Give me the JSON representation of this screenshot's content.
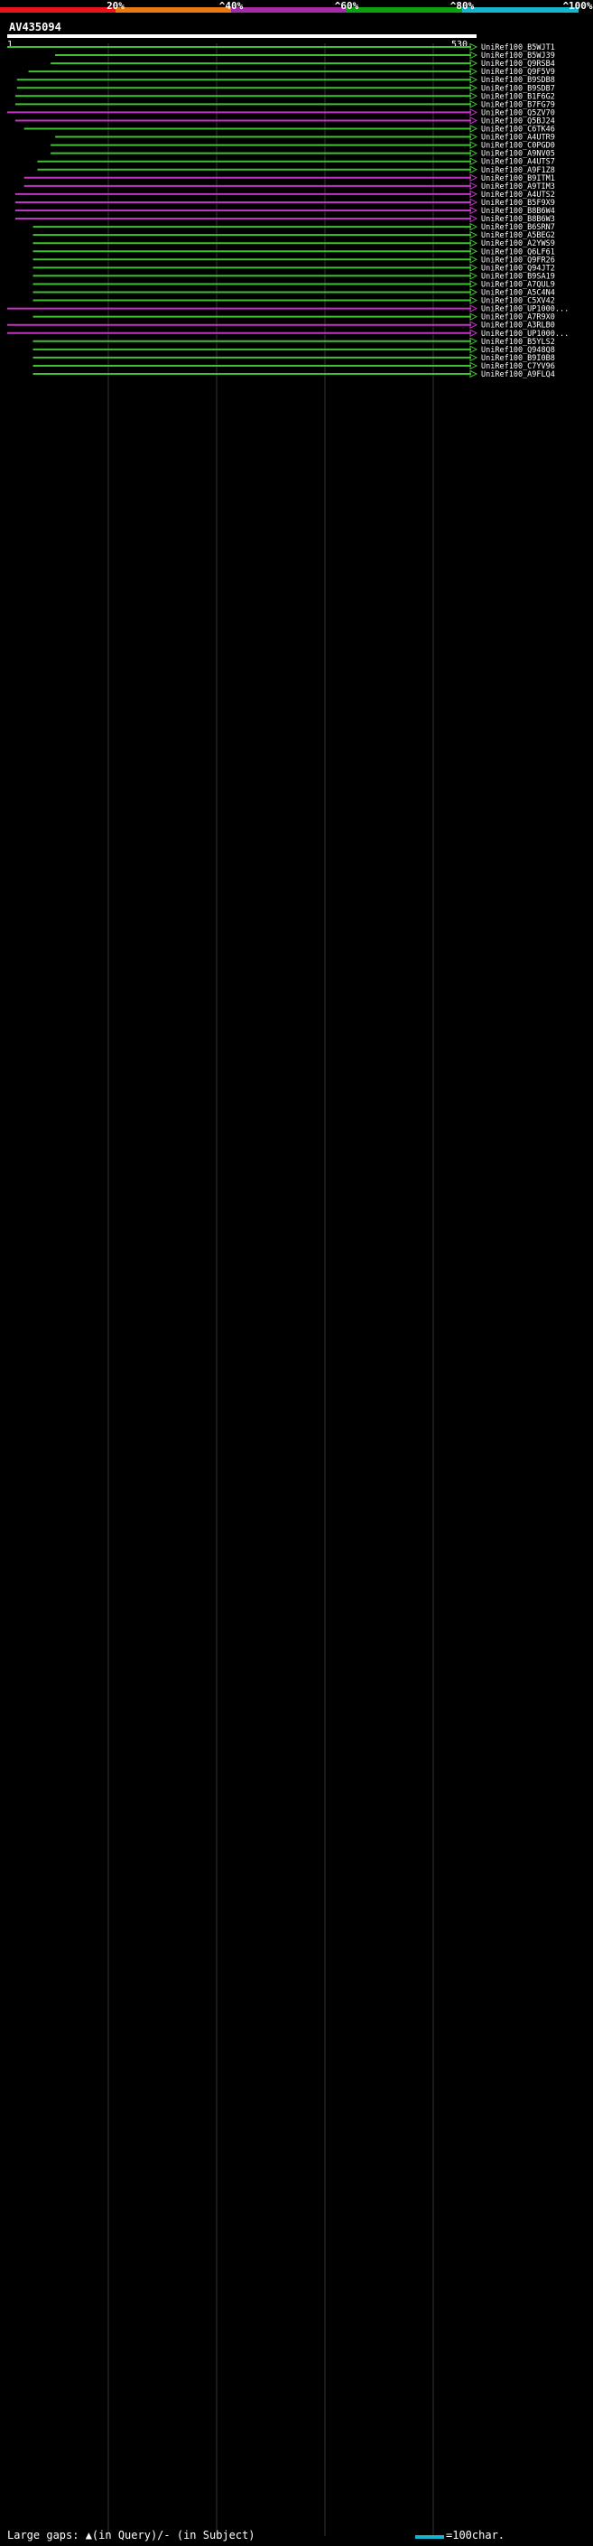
{
  "header": {
    "legend_ticks": [
      "20%",
      "^40%",
      "^60%",
      "^80%",
      "^100%"
    ],
    "legend_colors": [
      "#e8131b",
      "#e87a10",
      "#a52aa5",
      "#0da00f",
      "#16b5ce"
    ],
    "query_id": "AV435094",
    "scale_start": "1",
    "scale_end": "530"
  },
  "footer": {
    "left_text": "Large gaps: ▲(in Query)/- (in Subject)",
    "right_text": "=100char.",
    "scale_color": "#16b5ce"
  },
  "colors": {
    "green": "#3fc22f",
    "magenta": "#c234c4",
    "query_bar": "#ffffff",
    "grid": "#343434"
  },
  "chart_data": {
    "type": "bar",
    "description_scale": "horizontal alignment bars positioned by query coordinates 1..530",
    "x_range": [
      1,
      530
    ],
    "hits": [
      {
        "id": "UniRef100_B5WJT1",
        "start": 1,
        "end": 530,
        "color": "green"
      },
      {
        "id": "UniRef100_B5WJ39",
        "start": 55,
        "end": 530,
        "color": "green"
      },
      {
        "id": "UniRef100_Q9RSB4",
        "start": 50,
        "end": 530,
        "color": "green"
      },
      {
        "id": "UniRef100_Q9F5V9",
        "start": 25,
        "end": 530,
        "color": "green"
      },
      {
        "id": "UniRef100_B9SDB8",
        "start": 12,
        "end": 530,
        "color": "green"
      },
      {
        "id": "UniRef100_B9SDB7",
        "start": 12,
        "end": 530,
        "color": "green"
      },
      {
        "id": "UniRef100_B1F6G2",
        "start": 10,
        "end": 530,
        "color": "green"
      },
      {
        "id": "UniRef100_B7FG79",
        "start": 10,
        "end": 530,
        "color": "green"
      },
      {
        "id": "UniRef100_Q5ZV70",
        "start": 1,
        "end": 530,
        "color": "magenta"
      },
      {
        "id": "UniRef100_Q5BJ24",
        "start": 10,
        "end": 530,
        "color": "magenta"
      },
      {
        "id": "UniRef100_C6TK46",
        "start": 20,
        "end": 530,
        "color": "green"
      },
      {
        "id": "UniRef100_A4UTR9",
        "start": 55,
        "end": 530,
        "color": "green"
      },
      {
        "id": "UniRef100_C0PGD0",
        "start": 50,
        "end": 530,
        "color": "green"
      },
      {
        "id": "UniRef100_A9NV05",
        "start": 50,
        "end": 530,
        "color": "green"
      },
      {
        "id": "UniRef100_A4UTS7",
        "start": 35,
        "end": 530,
        "color": "green"
      },
      {
        "id": "UniRef100_A9F1Z8",
        "start": 35,
        "end": 530,
        "color": "green"
      },
      {
        "id": "UniRef100_B9ITM1",
        "start": 20,
        "end": 530,
        "color": "magenta"
      },
      {
        "id": "UniRef100_A9TIM3",
        "start": 20,
        "end": 530,
        "color": "magenta"
      },
      {
        "id": "UniRef100_A4UTS2",
        "start": 10,
        "end": 530,
        "color": "magenta"
      },
      {
        "id": "UniRef100_B5F9X9",
        "start": 10,
        "end": 530,
        "color": "magenta"
      },
      {
        "id": "UniRef100_B8B6W4",
        "start": 10,
        "end": 530,
        "color": "magenta"
      },
      {
        "id": "UniRef100_B8B6W3",
        "start": 10,
        "end": 530,
        "color": "magenta"
      },
      {
        "id": "UniRef100_B6SRN7",
        "start": 30,
        "end": 530,
        "color": "green"
      },
      {
        "id": "UniRef100_A5BEG2",
        "start": 30,
        "end": 530,
        "color": "green"
      },
      {
        "id": "UniRef100_A2YWS9",
        "start": 30,
        "end": 530,
        "color": "green"
      },
      {
        "id": "UniRef100_Q6LF61",
        "start": 30,
        "end": 530,
        "color": "green"
      },
      {
        "id": "UniRef100_Q9FR26",
        "start": 30,
        "end": 530,
        "color": "green"
      },
      {
        "id": "UniRef100_Q94JT2",
        "start": 30,
        "end": 530,
        "color": "green"
      },
      {
        "id": "UniRef100_B9SA19",
        "start": 30,
        "end": 530,
        "color": "green"
      },
      {
        "id": "UniRef100_A7QUL9",
        "start": 30,
        "end": 530,
        "color": "green"
      },
      {
        "id": "UniRef100_A5C4N4",
        "start": 30,
        "end": 530,
        "color": "green"
      },
      {
        "id": "UniRef100_C5XV42",
        "start": 30,
        "end": 530,
        "color": "green"
      },
      {
        "id": "UniRef100_UP1000...",
        "start": 1,
        "end": 530,
        "color": "magenta"
      },
      {
        "id": "UniRef100_A7R9X0",
        "start": 30,
        "end": 530,
        "color": "green"
      },
      {
        "id": "UniRef100_A3RLB0",
        "start": 1,
        "end": 530,
        "color": "magenta"
      },
      {
        "id": "UniRef100_UP1000...",
        "start": 1,
        "end": 530,
        "color": "magenta"
      },
      {
        "id": "UniRef100_B5YLS2",
        "start": 30,
        "end": 530,
        "color": "green"
      },
      {
        "id": "UniRef100_Q948Q8",
        "start": 30,
        "end": 530,
        "color": "green"
      },
      {
        "id": "UniRef100_B9I0B8",
        "start": 30,
        "end": 530,
        "color": "green"
      },
      {
        "id": "UniRef100_C7YV96",
        "start": 30,
        "end": 530,
        "color": "green"
      },
      {
        "id": "UniRef100_A9FLQ4",
        "start": 30,
        "end": 530,
        "color": "green"
      }
    ]
  }
}
